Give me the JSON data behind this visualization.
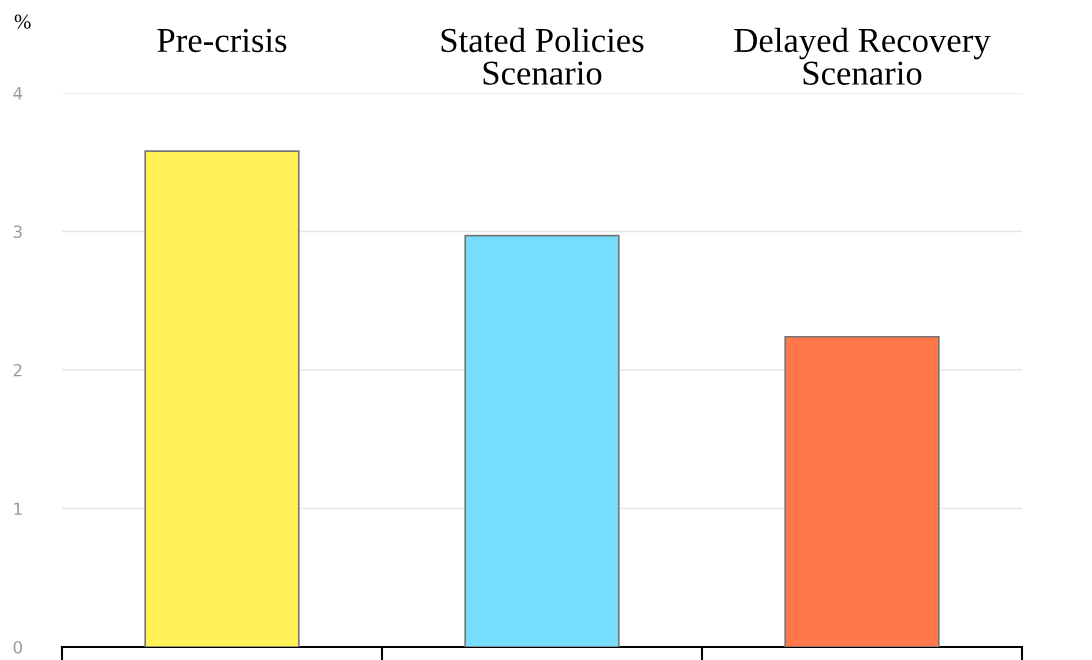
{
  "chart_data": {
    "type": "bar",
    "ylabel": "%",
    "categories": [
      "Pre-crisis",
      "Stated Policies\nScenario",
      "Delayed Recovery\nScenario"
    ],
    "values": [
      3.58,
      2.97,
      2.24
    ],
    "colors": [
      "#fff156",
      "#76ddfd",
      "#ff774a"
    ],
    "ylim": [
      0,
      4
    ],
    "yticks": [
      0,
      1,
      2,
      3,
      4
    ],
    "grid": "y",
    "legend": false
  }
}
